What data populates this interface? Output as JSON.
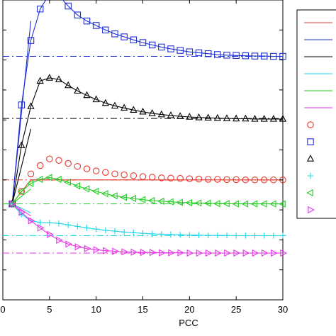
{
  "chart_data": {
    "type": "line",
    "title": "",
    "xlabel": "PCC",
    "ylabel": "",
    "xlim": [
      0,
      30
    ],
    "ylim": [
      0,
      10
    ],
    "x_ticks": [
      0,
      5,
      10,
      15,
      20,
      25,
      30
    ],
    "x_tick_labels": [
      "0",
      "5",
      "10",
      "15",
      "20",
      "25",
      "30"
    ],
    "grid": false,
    "legend_position": "right",
    "legend_labels_visible": false,
    "x": [
      1,
      2,
      3,
      4,
      5,
      6,
      7,
      8,
      9,
      10,
      11,
      12,
      13,
      14,
      15,
      16,
      17,
      18,
      19,
      20,
      21,
      22,
      23,
      24,
      25,
      26,
      27,
      28,
      29,
      30
    ],
    "series": [
      {
        "color": "#e8382d",
        "style": "solid",
        "marker": "none",
        "x": [
          1,
          2,
          3,
          30
        ],
        "values": [
          3.2,
          3.6,
          4.0,
          4.0
        ]
      },
      {
        "color": "#1f2fd6",
        "style": "solid",
        "marker": "none",
        "x": [
          1,
          3
        ],
        "values": [
          3.2,
          9.3
        ]
      },
      {
        "color": "#000000",
        "style": "solid",
        "marker": "none",
        "x": [
          1,
          3
        ],
        "values": [
          3.2,
          5.7
        ]
      },
      {
        "color": "#22d8e8",
        "style": "solid",
        "marker": "none",
        "x": [
          1,
          3
        ],
        "values": [
          3.2,
          2.9
        ]
      },
      {
        "color": "#22cc22",
        "style": "solid",
        "marker": "none",
        "x": [
          1,
          3
        ],
        "values": [
          3.2,
          3.7
        ]
      },
      {
        "color": "#e636e6",
        "style": "solid",
        "marker": "none",
        "x": [
          1,
          3
        ],
        "values": [
          3.2,
          2.8
        ]
      },
      {
        "color": "#e8382d",
        "style": "none",
        "marker": "circle",
        "values": [
          3.2,
          3.62,
          4.2,
          4.48,
          4.7,
          4.65,
          4.55,
          4.45,
          4.37,
          4.3,
          4.25,
          4.2,
          4.17,
          4.14,
          4.11,
          4.09,
          4.07,
          4.06,
          4.05,
          4.04,
          4.03,
          4.02,
          4.02,
          4.01,
          4.01,
          4.0,
          4.0,
          4.0,
          4.0,
          4.0
        ]
      },
      {
        "color": "#1f2fd6",
        "style": "solid",
        "marker": "square",
        "values": [
          3.2,
          6.5,
          8.65,
          9.7,
          10.2,
          10.15,
          9.8,
          9.5,
          9.3,
          9.15,
          9.0,
          8.87,
          8.77,
          8.67,
          8.58,
          8.5,
          8.43,
          8.37,
          8.32,
          8.27,
          8.24,
          8.21,
          8.18,
          8.16,
          8.15,
          8.14,
          8.13,
          8.13,
          8.12,
          8.12
        ]
      },
      {
        "color": "#000000",
        "style": "solid",
        "marker": "triangle-up",
        "values": [
          3.2,
          5.15,
          6.45,
          7.3,
          7.4,
          7.35,
          7.15,
          6.97,
          6.82,
          6.68,
          6.56,
          6.47,
          6.4,
          6.33,
          6.27,
          6.22,
          6.18,
          6.15,
          6.12,
          6.1,
          6.08,
          6.07,
          6.06,
          6.05,
          6.04,
          6.04,
          6.03,
          6.03,
          6.03,
          6.03
        ]
      },
      {
        "color": "#22d8e8",
        "style": "solid",
        "marker": "plus",
        "values": [
          3.2,
          2.85,
          2.64,
          2.58,
          2.57,
          2.55,
          2.5,
          2.45,
          2.4,
          2.36,
          2.32,
          2.29,
          2.26,
          2.24,
          2.22,
          2.2,
          2.19,
          2.18,
          2.17,
          2.16,
          2.16,
          2.15,
          2.15,
          2.15,
          2.14,
          2.14,
          2.14,
          2.14,
          2.14,
          2.14
        ]
      },
      {
        "color": "#22cc22",
        "style": "solid",
        "marker": "triangle-left",
        "values": [
          3.2,
          3.62,
          3.88,
          4.02,
          4.08,
          4.02,
          3.92,
          3.8,
          3.7,
          3.62,
          3.54,
          3.47,
          3.42,
          3.38,
          3.34,
          3.31,
          3.29,
          3.27,
          3.25,
          3.24,
          3.23,
          3.22,
          3.21,
          3.21,
          3.2,
          3.2,
          3.2,
          3.2,
          3.2,
          3.2
        ]
      },
      {
        "color": "#e636e6",
        "style": "solid",
        "marker": "triangle-right",
        "values": [
          3.2,
          2.92,
          2.64,
          2.4,
          2.18,
          1.99,
          1.86,
          1.77,
          1.71,
          1.67,
          1.64,
          1.62,
          1.6,
          1.59,
          1.58,
          1.58,
          1.57,
          1.57,
          1.57,
          1.56,
          1.56,
          1.56,
          1.56,
          1.56,
          1.56,
          1.56,
          1.56,
          1.56,
          1.56,
          1.56
        ]
      }
    ],
    "reference_lines": [
      {
        "color": "#1f2fd6",
        "style": "dashdot",
        "y": 8.12
      },
      {
        "color": "#000000",
        "style": "dashdot",
        "y": 6.05
      },
      {
        "color": "#e8382d",
        "style": "dashdot",
        "y": 4.0
      },
      {
        "color": "#22cc22",
        "style": "dashdot",
        "y": 3.2
      },
      {
        "color": "#22d8e8",
        "style": "dashdot",
        "y": 2.14
      },
      {
        "color": "#e636e6",
        "style": "dashdot",
        "y": 1.56
      }
    ],
    "legend_entries": [
      {
        "color": "#e8382d",
        "style": "solid",
        "marker": "none"
      },
      {
        "color": "#1f2fd6",
        "style": "solid",
        "marker": "none"
      },
      {
        "color": "#000000",
        "style": "solid",
        "marker": "none"
      },
      {
        "color": "#22d8e8",
        "style": "solid",
        "marker": "none"
      },
      {
        "color": "#22cc22",
        "style": "solid",
        "marker": "none"
      },
      {
        "color": "#e636e6",
        "style": "solid",
        "marker": "none"
      },
      {
        "color": "#e8382d",
        "style": "none",
        "marker": "circle"
      },
      {
        "color": "#1f2fd6",
        "style": "none",
        "marker": "square"
      },
      {
        "color": "#000000",
        "style": "none",
        "marker": "triangle-up"
      },
      {
        "color": "#22d8e8",
        "style": "none",
        "marker": "plus"
      },
      {
        "color": "#22cc22",
        "style": "none",
        "marker": "triangle-left"
      },
      {
        "color": "#e636e6",
        "style": "none",
        "marker": "triangle-right"
      }
    ]
  }
}
